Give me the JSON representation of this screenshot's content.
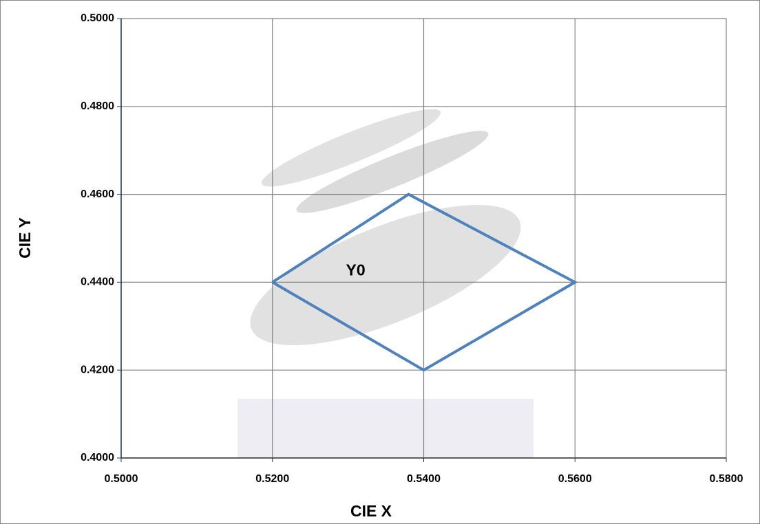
{
  "chart_data": {
    "type": "line",
    "xlabel": "CIE  X",
    "ylabel": "CIE Y",
    "xlim": [
      0.5,
      0.58
    ],
    "xticks": [
      {
        "value": 0.5,
        "label": "0.5000"
      },
      {
        "value": 0.52,
        "label": "0.5200"
      },
      {
        "value": 0.54,
        "label": "0.5400"
      },
      {
        "value": 0.56,
        "label": "0.5600"
      },
      {
        "value": 0.58,
        "label": "0.5800"
      }
    ],
    "ylim": [
      0.4,
      0.5
    ],
    "yticks": [
      {
        "value": 0.4,
        "label": "0.4000"
      },
      {
        "value": 0.42,
        "label": "0.4200"
      },
      {
        "value": 0.44,
        "label": "0.4400"
      },
      {
        "value": 0.46,
        "label": "0.4600"
      },
      {
        "value": 0.48,
        "label": "0.4800"
      },
      {
        "value": 0.5,
        "label": "0.5000"
      }
    ],
    "grid": true,
    "series": [
      {
        "color": "#4f81bd",
        "x": [
          0.52,
          0.538,
          0.56,
          0.54,
          0.52
        ],
        "y": [
          0.44,
          0.46,
          0.44,
          0.42,
          0.44
        ]
      }
    ],
    "annotations": [
      {
        "text": "Y0",
        "x": 0.531,
        "y": 0.4425
      }
    ]
  }
}
